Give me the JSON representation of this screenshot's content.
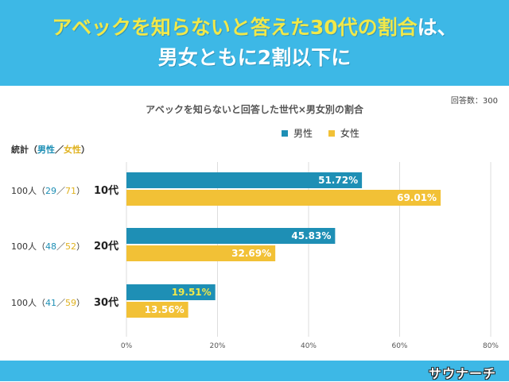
{
  "headline": {
    "line1_part1": "アベックを知らないと答えた30代の割合",
    "line1_part2": "は、",
    "line2": "男女ともに2割以下に"
  },
  "respondents": "回答数：300",
  "stats_header": {
    "prefix": "統計（",
    "male": "男性",
    "sep": "／",
    "female": "女性",
    "suffix": "）"
  },
  "rows": [
    {
      "count": "100人（",
      "male": "29",
      "sep": "／",
      "female": "71",
      "close": "）",
      "age": "10代"
    },
    {
      "count": "100人（",
      "male": "48",
      "sep": "／",
      "female": "52",
      "close": "）",
      "age": "20代"
    },
    {
      "count": "100人（",
      "male": "41",
      "sep": "／",
      "female": "59",
      "close": "）",
      "age": "30代"
    }
  ],
  "brand": "サウナーチ",
  "colors": {
    "banner": "#3db8e6",
    "male": "#1e8fb5",
    "female": "#f2c136",
    "highlight": "#f0e84a"
  },
  "chart_data": {
    "type": "bar",
    "orientation": "horizontal",
    "title": "アベックを知らないと回答した世代×男女別の割合",
    "categories": [
      "10代",
      "20代",
      "30代"
    ],
    "series": [
      {
        "name": "男性",
        "values": [
          51.72,
          45.83,
          19.51
        ],
        "labels": [
          "51.72%",
          "45.83%",
          "19.51%"
        ],
        "color": "#1e8fb5"
      },
      {
        "name": "女性",
        "values": [
          69.01,
          32.69,
          13.56
        ],
        "labels": [
          "69.01%",
          "32.69%",
          "13.56%"
        ],
        "color": "#f2c136"
      }
    ],
    "xlim": [
      0,
      80
    ],
    "xticks": [
      "0%",
      "20%",
      "40%",
      "60%",
      "80%"
    ],
    "legend": "top-right",
    "grid": true
  }
}
